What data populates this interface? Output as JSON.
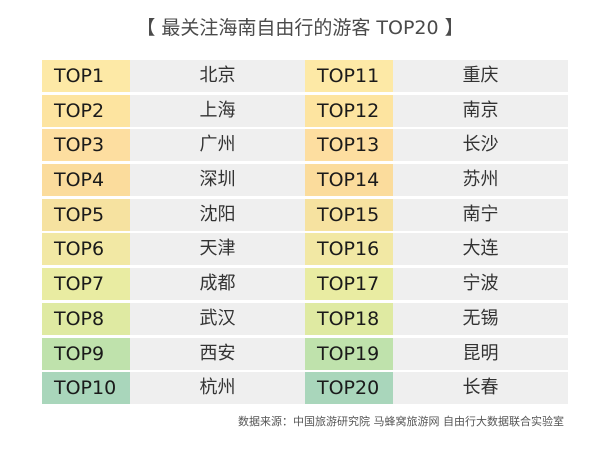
{
  "title": "【 最关注海南自由行的游客 TOP20 】",
  "left_column": [
    {
      "rank": "TOP1",
      "city": "北京",
      "color": "#fde9a6"
    },
    {
      "rank": "TOP2",
      "city": "上海",
      "color": "#fde4a0"
    },
    {
      "rank": "TOP3",
      "city": "广州",
      "color": "#fddea0"
    },
    {
      "rank": "TOP4",
      "city": "深圳",
      "color": "#fbdc9c"
    },
    {
      "rank": "TOP5",
      "city": "沈阳",
      "color": "#f6e2a0"
    },
    {
      "rank": "TOP6",
      "city": "天津",
      "color": "#f2e8a4"
    },
    {
      "rank": "TOP7",
      "city": "成都",
      "color": "#e9eca2"
    },
    {
      "rank": "TOP8",
      "city": "武汉",
      "color": "#dfeaa2"
    },
    {
      "rank": "TOP9",
      "city": "西安",
      "color": "#bfe2ac"
    },
    {
      "rank": "TOP10",
      "city": "杭州",
      "color": "#a9d6bb"
    }
  ],
  "right_column": [
    {
      "rank": "TOP11",
      "city": "重庆",
      "color": "#fde9a6"
    },
    {
      "rank": "TOP12",
      "city": "南京",
      "color": "#fde4a0"
    },
    {
      "rank": "TOP13",
      "city": "长沙",
      "color": "#fddea0"
    },
    {
      "rank": "TOP14",
      "city": "苏州",
      "color": "#fbdc9c"
    },
    {
      "rank": "TOP15",
      "city": "南宁",
      "color": "#f6e2a0"
    },
    {
      "rank": "TOP16",
      "city": "大连",
      "color": "#f2e8a4"
    },
    {
      "rank": "TOP17",
      "city": "宁波",
      "color": "#e9eca2"
    },
    {
      "rank": "TOP18",
      "city": "无锡",
      "color": "#dfeaa2"
    },
    {
      "rank": "TOP19",
      "city": "昆明",
      "color": "#bfe2ac"
    },
    {
      "rank": "TOP20",
      "city": "长春",
      "color": "#a9d6bb"
    }
  ],
  "footer": "数据来源：中国旅游研究院 马蜂窝旅游网 自由行大数据联合实验室"
}
